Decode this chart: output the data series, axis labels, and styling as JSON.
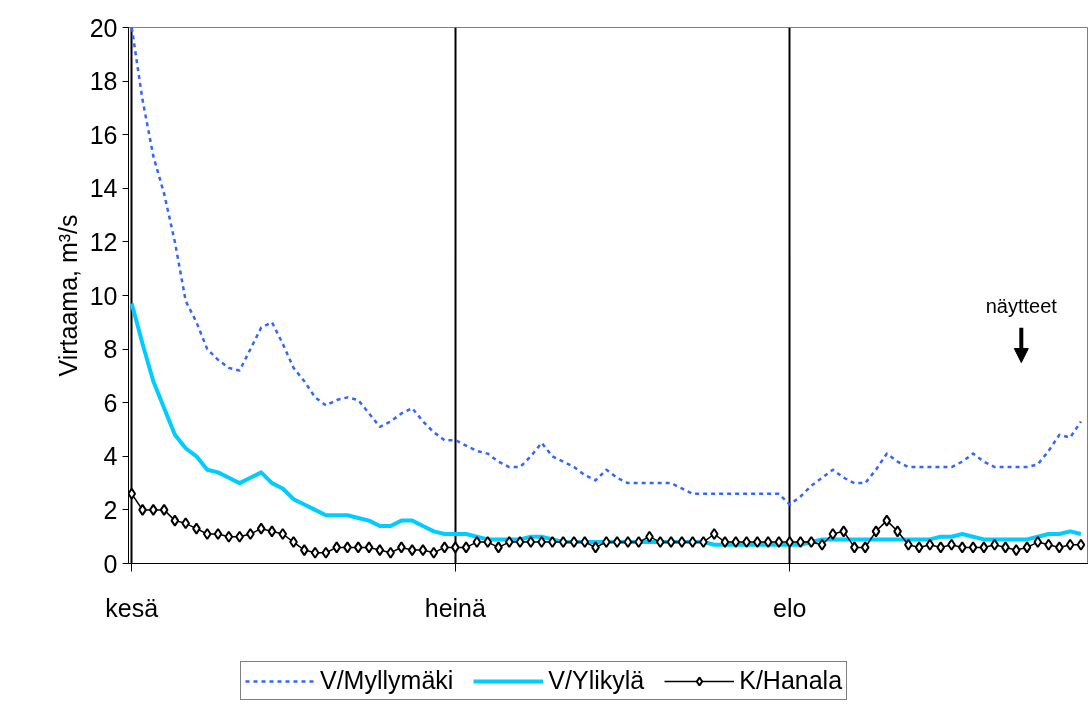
{
  "chart_data": {
    "type": "line",
    "ylabel": "Virtaama, m³/s",
    "ylim": [
      0,
      20
    ],
    "categories": [
      "kesä",
      null,
      null,
      null,
      null,
      null,
      null,
      null,
      null,
      null,
      null,
      null,
      null,
      null,
      null,
      null,
      null,
      null,
      null,
      null,
      null,
      null,
      null,
      null,
      null,
      null,
      null,
      null,
      null,
      null,
      "heinä",
      null,
      null,
      null,
      null,
      null,
      null,
      null,
      null,
      null,
      null,
      null,
      null,
      null,
      null,
      null,
      null,
      null,
      null,
      null,
      null,
      null,
      null,
      null,
      null,
      null,
      null,
      null,
      null,
      null,
      null,
      "elo",
      null,
      null,
      null,
      null,
      null,
      null,
      null,
      null,
      null,
      null,
      null,
      null,
      null,
      null,
      null,
      null,
      null,
      null,
      null,
      null,
      null,
      null,
      null,
      null,
      null,
      null,
      null
    ],
    "yticks": [
      0,
      2,
      4,
      6,
      8,
      10,
      12,
      14,
      16,
      18,
      20
    ],
    "grid": "x",
    "legend": "bottom",
    "annotations": [
      "näytteet"
    ],
    "series": [
      {
        "name": "V/Myllymäki",
        "color": "#3366ff",
        "line_style": "dashed",
        "marker": "none",
        "values": [
          20,
          17.3,
          15.2,
          13.8,
          12,
          9.8,
          9,
          8,
          7.6,
          7.3,
          7.2,
          8,
          8.8,
          9,
          8.2,
          7.3,
          6.8,
          6.2,
          5.9,
          6.1,
          6.2,
          6.1,
          5.6,
          5.1,
          5.3,
          5.6,
          5.8,
          5.3,
          4.9,
          4.6,
          4.6,
          4.4,
          4.2,
          4.1,
          3.8,
          3.6,
          3.6,
          4,
          4.5,
          4,
          3.8,
          3.6,
          3.3,
          3.1,
          3.5,
          3.2,
          3,
          3,
          3,
          3,
          3,
          2.8,
          2.6,
          2.6,
          2.6,
          2.6,
          2.6,
          2.6,
          2.6,
          2.6,
          2.6,
          2.2,
          2.5,
          2.9,
          3.2,
          3.5,
          3.2,
          3,
          3,
          3.5,
          4.1,
          3.8,
          3.6,
          3.6,
          3.6,
          3.6,
          3.6,
          3.8,
          4.1,
          3.8,
          3.6,
          3.6,
          3.6,
          3.6,
          3.7,
          4.2,
          4.8,
          4.7,
          5.3
        ]
      },
      {
        "name": "V/Ylikylä",
        "color": "#00ccff",
        "line_style": "solid",
        "marker": "none",
        "values": [
          9.7,
          8.2,
          6.8,
          5.8,
          4.8,
          4.3,
          4,
          3.5,
          3.4,
          3.2,
          3,
          3.2,
          3.4,
          3,
          2.8,
          2.4,
          2.2,
          2,
          1.8,
          1.8,
          1.8,
          1.7,
          1.6,
          1.4,
          1.4,
          1.6,
          1.6,
          1.4,
          1.2,
          1.1,
          1.1,
          1.1,
          1,
          0.9,
          0.9,
          0.9,
          0.9,
          1,
          1,
          0.9,
          0.8,
          0.8,
          0.8,
          0.8,
          0.8,
          0.8,
          0.8,
          0.8,
          0.8,
          0.8,
          0.8,
          0.8,
          0.8,
          0.8,
          0.7,
          0.7,
          0.7,
          0.7,
          0.7,
          0.7,
          0.7,
          0.7,
          0.7,
          0.8,
          0.9,
          0.9,
          0.9,
          0.9,
          0.9,
          0.9,
          0.9,
          0.9,
          0.9,
          0.9,
          0.9,
          1,
          1,
          1.1,
          1,
          0.9,
          0.9,
          0.9,
          0.9,
          0.9,
          1,
          1.1,
          1.1,
          1.2,
          1.1
        ]
      },
      {
        "name": "K/Hanala",
        "color": "#000000",
        "line_style": "solid",
        "marker": "diamond",
        "values": [
          2.6,
          2,
          2,
          2,
          1.6,
          1.5,
          1.3,
          1.1,
          1.1,
          1,
          1,
          1.1,
          1.3,
          1.2,
          1.1,
          0.8,
          0.5,
          0.4,
          0.4,
          0.6,
          0.6,
          0.6,
          0.6,
          0.5,
          0.4,
          0.6,
          0.5,
          0.5,
          0.4,
          0.6,
          0.6,
          0.6,
          0.8,
          0.8,
          0.6,
          0.8,
          0.8,
          0.8,
          0.8,
          0.8,
          0.8,
          0.8,
          0.8,
          0.6,
          0.8,
          0.8,
          0.8,
          0.8,
          1,
          0.8,
          0.8,
          0.8,
          0.8,
          0.8,
          1.1,
          0.8,
          0.8,
          0.8,
          0.8,
          0.8,
          0.8,
          0.8,
          0.8,
          0.8,
          0.7,
          1.1,
          1.2,
          0.6,
          0.6,
          1.2,
          1.6,
          1.2,
          0.7,
          0.6,
          0.7,
          0.6,
          0.7,
          0.6,
          0.6,
          0.6,
          0.7,
          0.6,
          0.5,
          0.6,
          0.8,
          0.7,
          0.6,
          0.7,
          0.7
        ]
      }
    ]
  }
}
